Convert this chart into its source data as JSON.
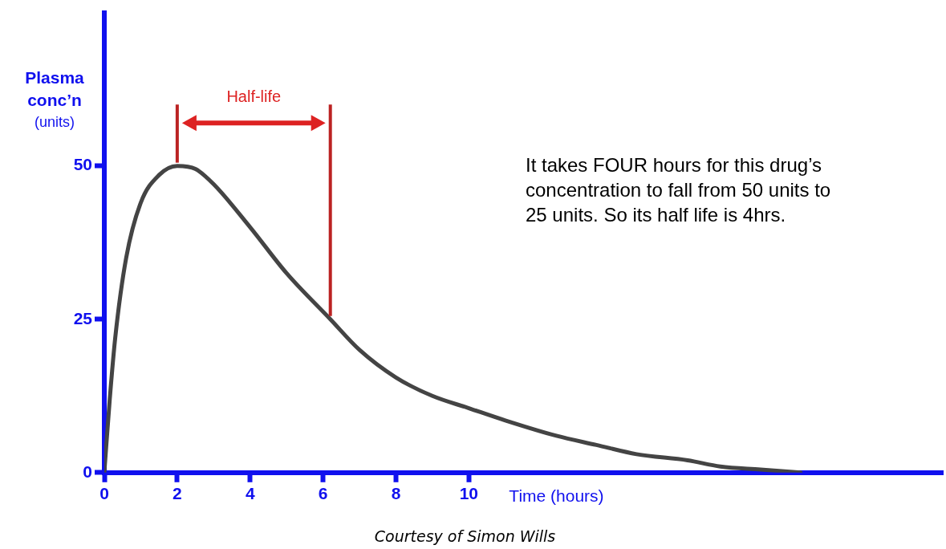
{
  "chart_data": {
    "type": "line",
    "ylabel": "Plasma conc’n (units)",
    "xlabel": "Time (hours)",
    "x": [
      0,
      0.15,
      0.3,
      0.6,
      1,
      1.5,
      2,
      2.5,
      3,
      4,
      5,
      6.2,
      7,
      8,
      9,
      10,
      11,
      12.4,
      13.5,
      14.6,
      16,
      16.9,
      18,
      19.1
    ],
    "series": [
      {
        "color": "#444444",
        "values": [
          0,
          12,
          22,
          35,
          44,
          48.5,
          50,
          49.5,
          47,
          40,
          32.5,
          25,
          20,
          15.5,
          12.5,
          10.5,
          8.5,
          6,
          4.5,
          3,
          2,
          1,
          0.5,
          0
        ]
      }
    ],
    "xlim": [
      0,
      23
    ],
    "xticks": [
      0,
      2,
      4,
      6,
      8,
      10
    ],
    "ylim": [
      0,
      75
    ],
    "yticks": [
      0,
      25,
      50
    ],
    "ref_lines": [
      {
        "axis": "x",
        "value": 2,
        "color": "#bb2222"
      },
      {
        "axis": "x",
        "value": 6.2,
        "color": "#bb2222"
      }
    ],
    "annotations": [
      "Half-life",
      "It takes FOUR hours for this drug’s concentration to fall from 50 units to 25 units. So its half life is 4hrs.",
      "Courtesy of Simon Wills"
    ],
    "grid": false,
    "legend": false,
    "marker": "none",
    "line_style": "solid"
  }
}
